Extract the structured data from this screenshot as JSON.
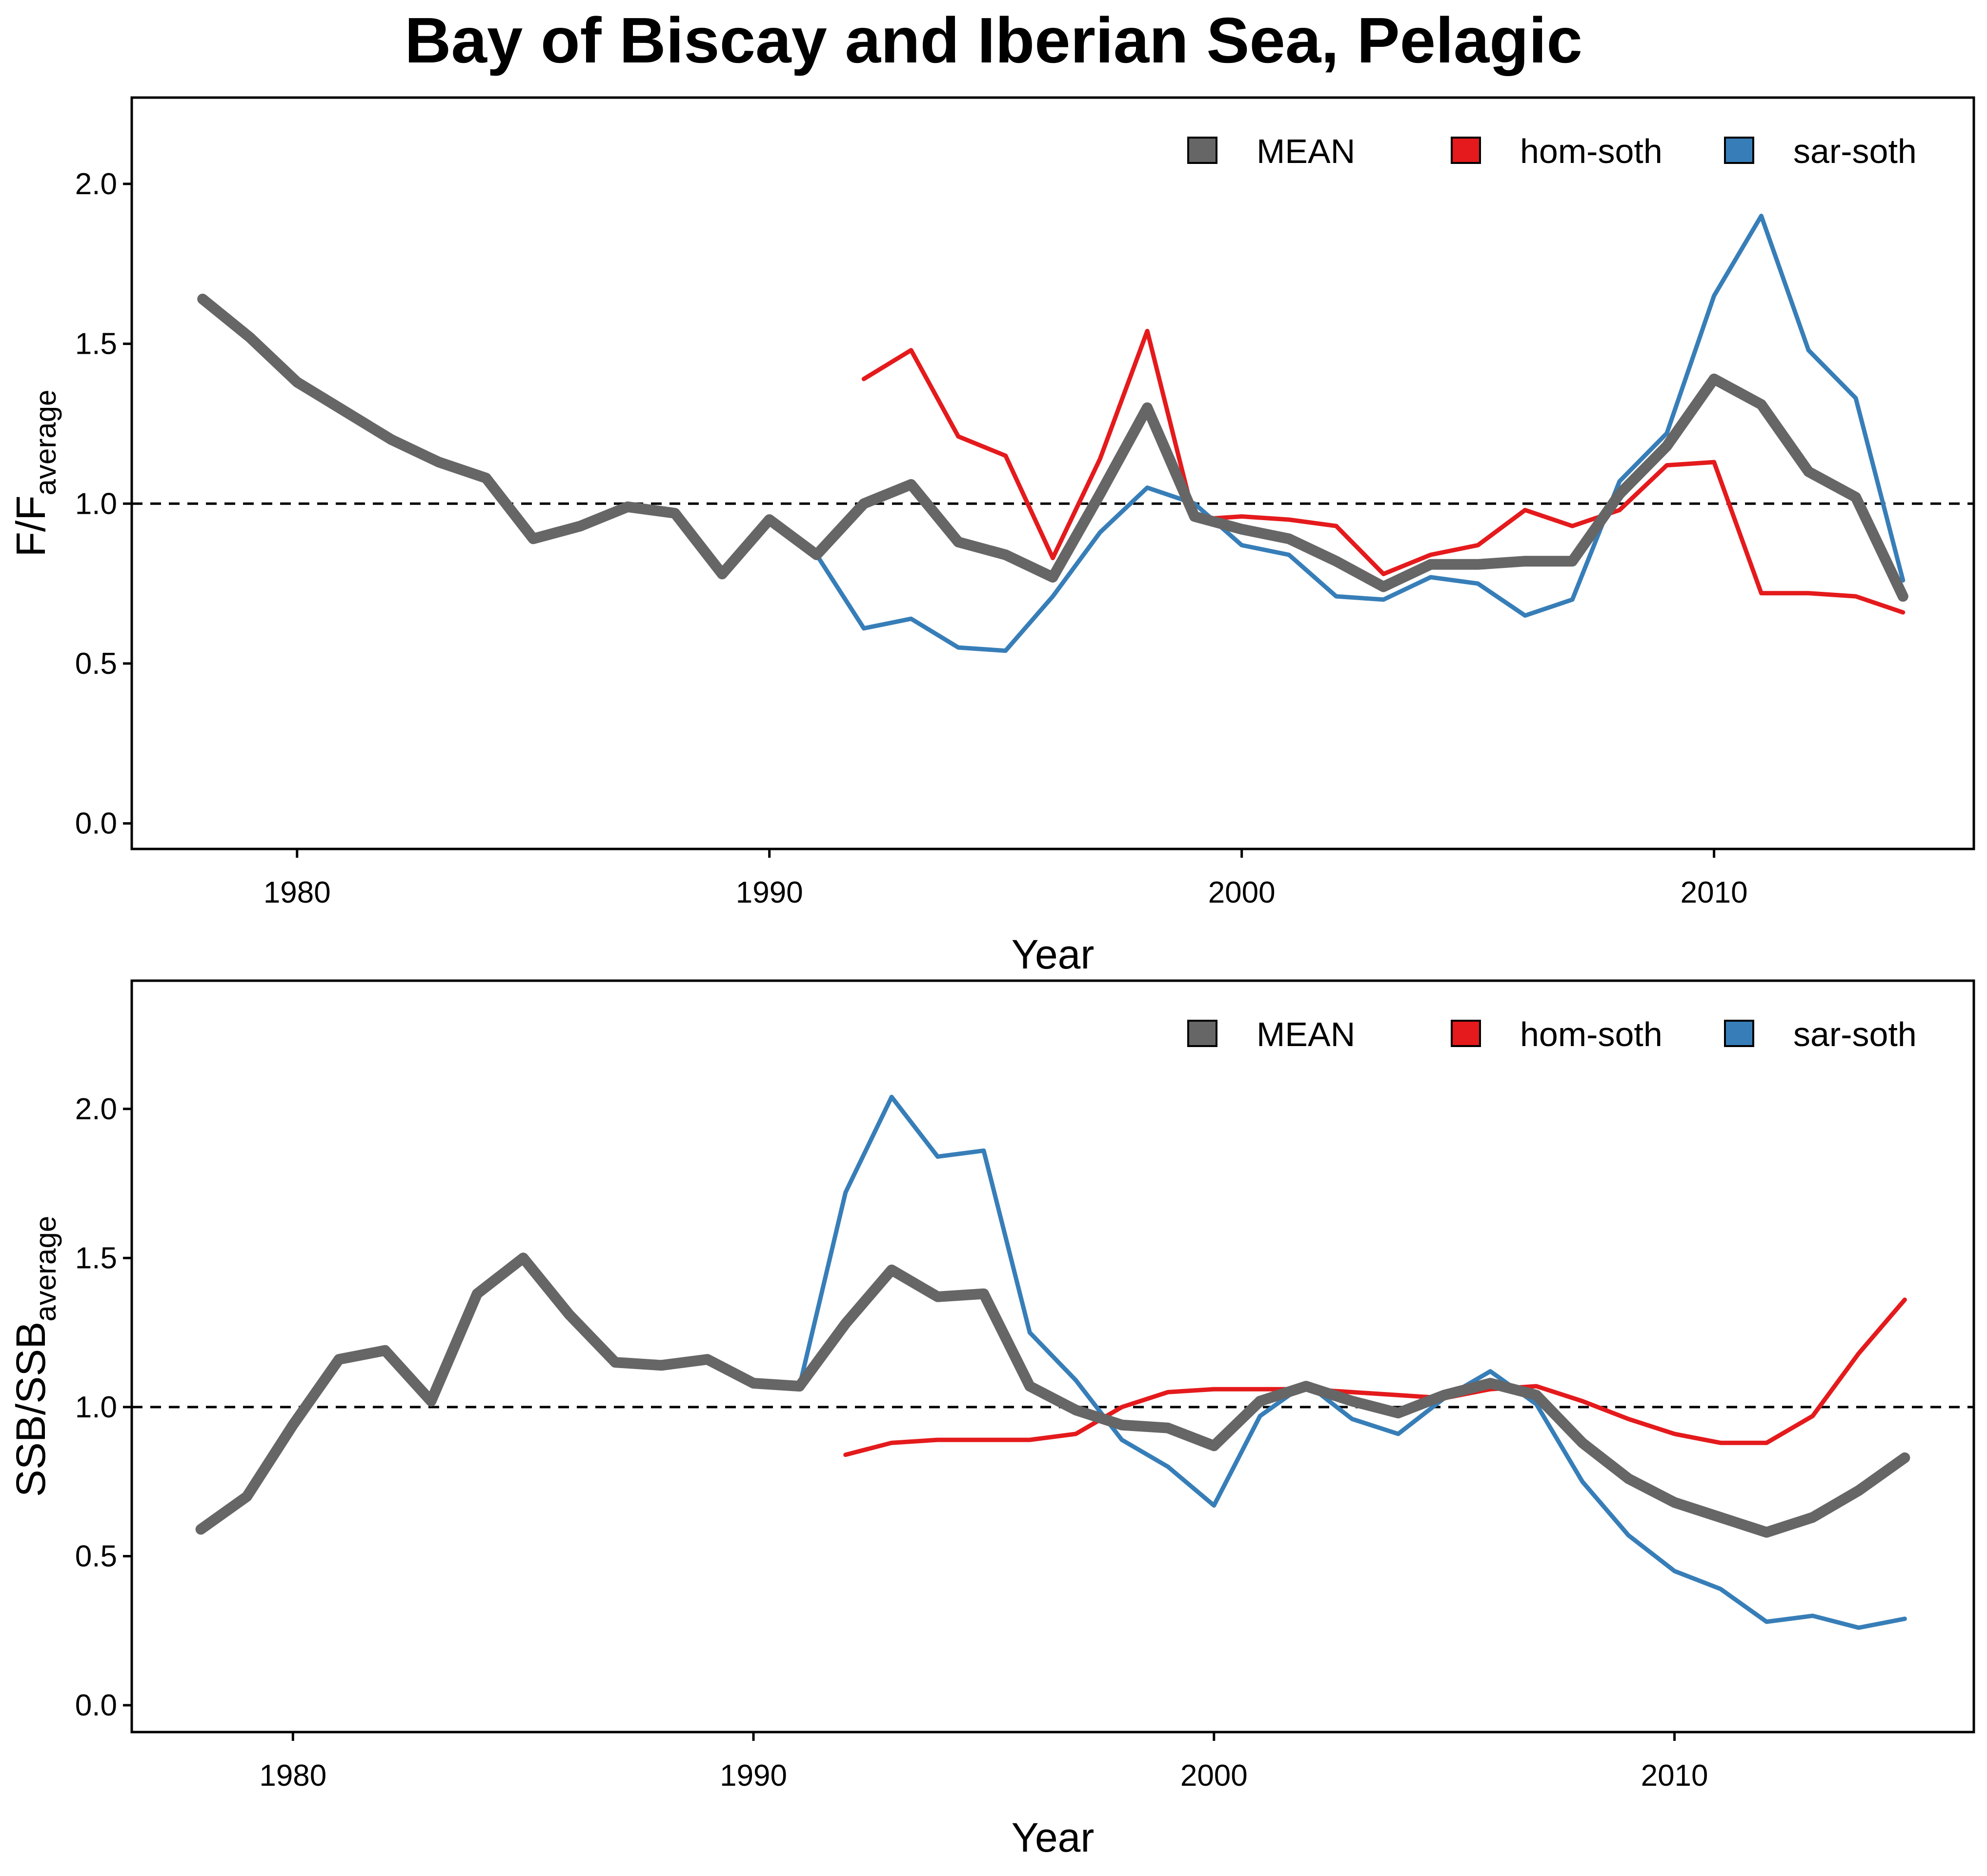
{
  "title": "Bay of Biscay and Iberian Sea, Pelagic",
  "chart_data": [
    {
      "type": "line",
      "xlabel": "Year",
      "ylabel_main": "F/F",
      "ylabel_sub": "average",
      "xlim": [
        1976.5,
        2015.5
      ],
      "ylim": [
        -0.08,
        2.27
      ],
      "xticks": [
        1980,
        1990,
        2000,
        2010
      ],
      "yticks": [
        "0.0",
        "0.5",
        "1.0",
        "1.5",
        "2.0"
      ],
      "reference_line": 1.0,
      "grid": false,
      "legend_position": "top-right",
      "legend": [
        "MEAN",
        "hom-soth",
        "sar-soth"
      ],
      "series": [
        {
          "name": "MEAN",
          "color": "#666666",
          "x": [
            1978,
            1979,
            1980,
            1981,
            1982,
            1983,
            1984,
            1985,
            1986,
            1987,
            1988,
            1989,
            1990,
            1991,
            1992,
            1993,
            1994,
            1995,
            1996,
            1997,
            1998,
            1999,
            2000,
            2001,
            2002,
            2003,
            2004,
            2005,
            2006,
            2007,
            2008,
            2009,
            2010,
            2011,
            2012,
            2013,
            2014
          ],
          "values": [
            1.64,
            1.52,
            1.38,
            1.29,
            1.2,
            1.13,
            1.08,
            0.89,
            0.93,
            0.99,
            0.97,
            0.78,
            0.95,
            0.84,
            1.0,
            1.06,
            0.88,
            0.84,
            0.77,
            1.03,
            1.3,
            0.96,
            0.92,
            0.89,
            0.82,
            0.74,
            0.81,
            0.81,
            0.82,
            0.82,
            1.03,
            1.18,
            1.39,
            1.31,
            1.1,
            1.02,
            0.71
          ]
        },
        {
          "name": "hom-soth",
          "color": "#e41a1c",
          "x": [
            1992,
            1993,
            1994,
            1995,
            1996,
            1997,
            1998,
            1999,
            2000,
            2001,
            2002,
            2003,
            2004,
            2005,
            2006,
            2007,
            2008,
            2009,
            2010,
            2011,
            2012,
            2013,
            2014
          ],
          "values": [
            1.39,
            1.48,
            1.21,
            1.15,
            0.83,
            1.14,
            1.54,
            0.95,
            0.96,
            0.95,
            0.93,
            0.78,
            0.84,
            0.87,
            0.98,
            0.93,
            0.98,
            1.12,
            1.13,
            0.72,
            0.72,
            0.71,
            0.66
          ]
        },
        {
          "name": "sar-soth",
          "color": "#377eb8",
          "x": [
            1978,
            1979,
            1980,
            1981,
            1982,
            1983,
            1984,
            1985,
            1986,
            1987,
            1988,
            1989,
            1990,
            1991,
            1992,
            1993,
            1994,
            1995,
            1996,
            1997,
            1998,
            1999,
            2000,
            2001,
            2002,
            2003,
            2004,
            2005,
            2006,
            2007,
            2008,
            2009,
            2010,
            2011,
            2012,
            2013,
            2014
          ],
          "values": [
            1.64,
            1.52,
            1.38,
            1.29,
            1.2,
            1.13,
            1.08,
            0.89,
            0.93,
            0.99,
            0.97,
            0.78,
            0.95,
            0.84,
            0.61,
            0.64,
            0.55,
            0.54,
            0.71,
            0.91,
            1.05,
            1.0,
            0.87,
            0.84,
            0.71,
            0.7,
            0.77,
            0.75,
            0.65,
            0.7,
            1.07,
            1.22,
            1.65,
            1.9,
            1.48,
            1.33,
            0.76
          ]
        }
      ]
    },
    {
      "type": "line",
      "xlabel": "Year",
      "ylabel_main": "SSB/SSB",
      "ylabel_sub": "average",
      "xlim": [
        1976.5,
        2016.5
      ],
      "ylim": [
        -0.09,
        2.43
      ],
      "xticks": [
        1980,
        1990,
        2000,
        2010
      ],
      "yticks": [
        "0.0",
        "0.5",
        "1.0",
        "1.5",
        "2.0"
      ],
      "reference_line": 1.0,
      "grid": false,
      "legend_position": "top-right",
      "legend": [
        "MEAN",
        "hom-soth",
        "sar-soth"
      ],
      "series": [
        {
          "name": "MEAN",
          "color": "#666666",
          "x": [
            1978,
            1979,
            1980,
            1981,
            1982,
            1983,
            1984,
            1985,
            1986,
            1987,
            1988,
            1989,
            1990,
            1991,
            1992,
            1993,
            1994,
            1995,
            1996,
            1997,
            1998,
            1999,
            2000,
            2001,
            2002,
            2003,
            2004,
            2005,
            2006,
            2007,
            2008,
            2009,
            2010,
            2011,
            2012,
            2013,
            2014,
            2015
          ],
          "values": [
            0.59,
            0.7,
            0.94,
            1.16,
            1.19,
            1.02,
            1.38,
            1.5,
            1.31,
            1.15,
            1.14,
            1.16,
            1.08,
            1.07,
            1.28,
            1.46,
            1.37,
            1.38,
            1.07,
            0.99,
            0.94,
            0.93,
            0.87,
            1.02,
            1.07,
            1.02,
            0.98,
            1.04,
            1.08,
            1.04,
            0.88,
            0.76,
            0.68,
            0.63,
            0.58,
            0.63,
            0.72,
            0.83
          ]
        },
        {
          "name": "hom-soth",
          "color": "#e41a1c",
          "x": [
            1992,
            1993,
            1994,
            1995,
            1996,
            1997,
            1998,
            1999,
            2000,
            2001,
            2002,
            2003,
            2004,
            2005,
            2006,
            2007,
            2008,
            2009,
            2010,
            2011,
            2012,
            2013,
            2014,
            2015
          ],
          "values": [
            0.84,
            0.88,
            0.89,
            0.89,
            0.89,
            0.91,
            1.0,
            1.05,
            1.06,
            1.06,
            1.06,
            1.05,
            1.04,
            1.03,
            1.06,
            1.07,
            1.02,
            0.96,
            0.91,
            0.88,
            0.88,
            0.97,
            1.18,
            1.36
          ]
        },
        {
          "name": "sar-soth",
          "color": "#377eb8",
          "x": [
            1978,
            1979,
            1980,
            1981,
            1982,
            1983,
            1984,
            1985,
            1986,
            1987,
            1988,
            1989,
            1990,
            1991,
            1992,
            1993,
            1994,
            1995,
            1996,
            1997,
            1998,
            1999,
            2000,
            2001,
            2002,
            2003,
            2004,
            2005,
            2006,
            2007,
            2008,
            2009,
            2010,
            2011,
            2012,
            2013,
            2014,
            2015
          ],
          "values": [
            0.59,
            0.7,
            0.94,
            1.16,
            1.19,
            1.02,
            1.38,
            1.5,
            1.31,
            1.15,
            1.14,
            1.16,
            1.08,
            1.07,
            1.72,
            2.04,
            1.84,
            1.86,
            1.25,
            1.09,
            0.89,
            0.8,
            0.67,
            0.97,
            1.08,
            0.96,
            0.91,
            1.03,
            1.12,
            1.01,
            0.75,
            0.57,
            0.45,
            0.39,
            0.28,
            0.3,
            0.26,
            0.29
          ]
        }
      ]
    }
  ]
}
